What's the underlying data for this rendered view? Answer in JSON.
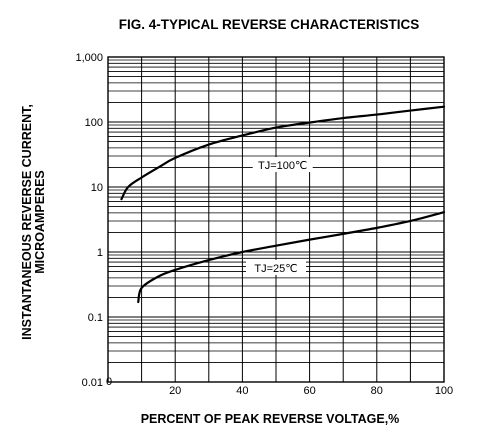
{
  "chart_data": {
    "type": "line",
    "title": "FIG. 4-TYPICAL REVERSE CHARACTERISTICS",
    "xlabel": "PERCENT OF PEAK REVERSE VOLTAGE,%",
    "ylabel_line1": "INSTANTANEOUS REVERSE CURRENT,",
    "ylabel_line2": "MICROAMPERES",
    "x_scale": "linear",
    "y_scale": "log",
    "xlim": [
      0,
      100
    ],
    "ylim": [
      0.01,
      1000
    ],
    "x_ticks": [
      {
        "value": 0,
        "label": "0"
      },
      {
        "value": 20,
        "label": "20"
      },
      {
        "value": 40,
        "label": "40"
      },
      {
        "value": 60,
        "label": "60"
      },
      {
        "value": 80,
        "label": "80"
      },
      {
        "value": 100,
        "label": "100"
      }
    ],
    "y_ticks": [
      {
        "value": 0.01,
        "label": "0.01"
      },
      {
        "value": 0.1,
        "label": "0.1"
      },
      {
        "value": 1,
        "label": "1"
      },
      {
        "value": 10,
        "label": "10"
      },
      {
        "value": 100,
        "label": "100"
      },
      {
        "value": 1000,
        "label": "1,000"
      }
    ],
    "grid": true,
    "series": [
      {
        "name": "TJ=100℃",
        "x": [
          4,
          6,
          10,
          15,
          20,
          30,
          40,
          50,
          60,
          70,
          80,
          90,
          100
        ],
        "y": [
          6.5,
          10,
          14,
          20,
          28,
          45,
          62,
          82,
          98,
          115,
          130,
          150,
          172
        ]
      },
      {
        "name": "TJ=25℃",
        "x": [
          9,
          10,
          15,
          20,
          30,
          40,
          50,
          60,
          70,
          80,
          90,
          100
        ],
        "y": [
          0.17,
          0.28,
          0.42,
          0.53,
          0.75,
          1.0,
          1.25,
          1.55,
          1.9,
          2.35,
          3.0,
          4.1
        ]
      }
    ]
  }
}
